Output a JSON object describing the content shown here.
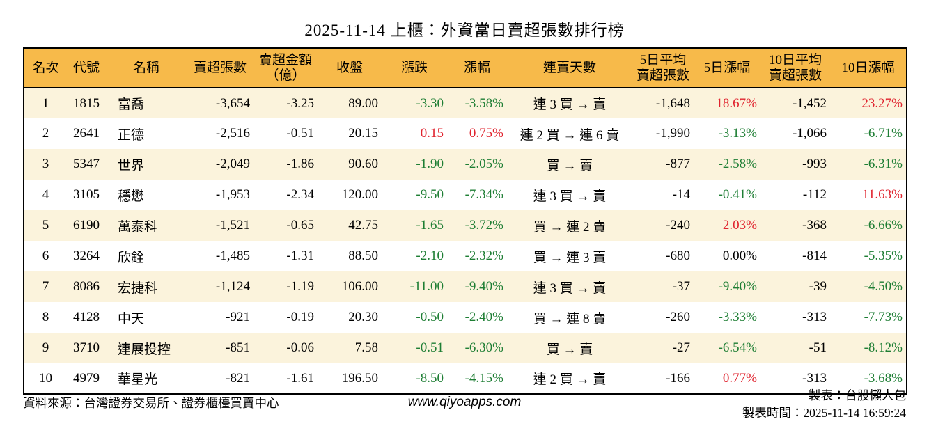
{
  "title": "2025-11-14 上櫃：外資當日賣超張數排行榜",
  "colors": {
    "header_bg": "#f7ba4a",
    "row_stripe_bg": "#fbf3dc",
    "row_plain_bg": "#ffffff",
    "up_red": "#e0232e",
    "down_green": "#1e7e34",
    "text": "#000000",
    "border": "#000000"
  },
  "table": {
    "columns": [
      {
        "key": "rank",
        "label": "名次"
      },
      {
        "key": "code",
        "label": "代號"
      },
      {
        "key": "name",
        "label": "名稱"
      },
      {
        "key": "sell_volume",
        "label": "賣超張數"
      },
      {
        "key": "sell_amount",
        "label": "賣超金額\n（億）"
      },
      {
        "key": "close",
        "label": "收盤"
      },
      {
        "key": "change",
        "label": "漲跌"
      },
      {
        "key": "change_pct",
        "label": "漲幅"
      },
      {
        "key": "streak",
        "label": "連賣天數"
      },
      {
        "key": "avg5",
        "label": "5日平均\n賣超張數"
      },
      {
        "key": "pct5",
        "label": "5日漲幅"
      },
      {
        "key": "avg10",
        "label": "10日平均\n賣超張數"
      },
      {
        "key": "pct10",
        "label": "10日漲幅"
      }
    ],
    "rows": [
      {
        "cells": [
          {
            "t": "1"
          },
          {
            "t": "1815"
          },
          {
            "t": "富喬"
          },
          {
            "t": "-3,654"
          },
          {
            "t": "-3.25"
          },
          {
            "t": "89.00"
          },
          {
            "t": "-3.30",
            "c": "dn"
          },
          {
            "t": "-3.58%",
            "c": "dn"
          },
          {
            "t": "連 3 買 → 賣"
          },
          {
            "t": "-1,648"
          },
          {
            "t": "18.67%",
            "c": "up"
          },
          {
            "t": "-1,452"
          },
          {
            "t": "23.27%",
            "c": "up"
          }
        ]
      },
      {
        "cells": [
          {
            "t": "2"
          },
          {
            "t": "2641"
          },
          {
            "t": "正德"
          },
          {
            "t": "-2,516"
          },
          {
            "t": "-0.51"
          },
          {
            "t": "20.15"
          },
          {
            "t": "0.15",
            "c": "up"
          },
          {
            "t": "0.75%",
            "c": "up"
          },
          {
            "t": "連 2 買 → 連 6 賣"
          },
          {
            "t": "-1,990"
          },
          {
            "t": "-3.13%",
            "c": "dn"
          },
          {
            "t": "-1,066"
          },
          {
            "t": "-6.71%",
            "c": "dn"
          }
        ]
      },
      {
        "cells": [
          {
            "t": "3"
          },
          {
            "t": "5347"
          },
          {
            "t": "世界"
          },
          {
            "t": "-2,049"
          },
          {
            "t": "-1.86"
          },
          {
            "t": "90.60"
          },
          {
            "t": "-1.90",
            "c": "dn"
          },
          {
            "t": "-2.05%",
            "c": "dn"
          },
          {
            "t": "買 → 賣"
          },
          {
            "t": "-877"
          },
          {
            "t": "-2.58%",
            "c": "dn"
          },
          {
            "t": "-993"
          },
          {
            "t": "-6.31%",
            "c": "dn"
          }
        ]
      },
      {
        "cells": [
          {
            "t": "4"
          },
          {
            "t": "3105"
          },
          {
            "t": "穩懋"
          },
          {
            "t": "-1,953"
          },
          {
            "t": "-2.34"
          },
          {
            "t": "120.00"
          },
          {
            "t": "-9.50",
            "c": "dn"
          },
          {
            "t": "-7.34%",
            "c": "dn"
          },
          {
            "t": "連 3 買 → 賣"
          },
          {
            "t": "-14"
          },
          {
            "t": "-0.41%",
            "c": "dn"
          },
          {
            "t": "-112"
          },
          {
            "t": "11.63%",
            "c": "up"
          }
        ]
      },
      {
        "cells": [
          {
            "t": "5"
          },
          {
            "t": "6190"
          },
          {
            "t": "萬泰科"
          },
          {
            "t": "-1,521"
          },
          {
            "t": "-0.65"
          },
          {
            "t": "42.75"
          },
          {
            "t": "-1.65",
            "c": "dn"
          },
          {
            "t": "-3.72%",
            "c": "dn"
          },
          {
            "t": "買 → 連 2 賣"
          },
          {
            "t": "-240"
          },
          {
            "t": "2.03%",
            "c": "up"
          },
          {
            "t": "-368"
          },
          {
            "t": "-6.66%",
            "c": "dn"
          }
        ]
      },
      {
        "cells": [
          {
            "t": "6"
          },
          {
            "t": "3264"
          },
          {
            "t": "欣銓"
          },
          {
            "t": "-1,485"
          },
          {
            "t": "-1.31"
          },
          {
            "t": "88.50"
          },
          {
            "t": "-2.10",
            "c": "dn"
          },
          {
            "t": "-2.32%",
            "c": "dn"
          },
          {
            "t": "買 → 連 3 賣"
          },
          {
            "t": "-680"
          },
          {
            "t": "0.00%"
          },
          {
            "t": "-814"
          },
          {
            "t": "-5.35%",
            "c": "dn"
          }
        ]
      },
      {
        "cells": [
          {
            "t": "7"
          },
          {
            "t": "8086"
          },
          {
            "t": "宏捷科"
          },
          {
            "t": "-1,124"
          },
          {
            "t": "-1.19"
          },
          {
            "t": "106.00"
          },
          {
            "t": "-11.00",
            "c": "dn"
          },
          {
            "t": "-9.40%",
            "c": "dn"
          },
          {
            "t": "連 3 買 → 賣"
          },
          {
            "t": "-37"
          },
          {
            "t": "-9.40%",
            "c": "dn"
          },
          {
            "t": "-39"
          },
          {
            "t": "-4.50%",
            "c": "dn"
          }
        ]
      },
      {
        "cells": [
          {
            "t": "8"
          },
          {
            "t": "4128"
          },
          {
            "t": "中天"
          },
          {
            "t": "-921"
          },
          {
            "t": "-0.19"
          },
          {
            "t": "20.30"
          },
          {
            "t": "-0.50",
            "c": "dn"
          },
          {
            "t": "-2.40%",
            "c": "dn"
          },
          {
            "t": "買 → 連 8 賣"
          },
          {
            "t": "-260"
          },
          {
            "t": "-3.33%",
            "c": "dn"
          },
          {
            "t": "-313"
          },
          {
            "t": "-7.73%",
            "c": "dn"
          }
        ]
      },
      {
        "cells": [
          {
            "t": "9"
          },
          {
            "t": "3710"
          },
          {
            "t": "連展投控"
          },
          {
            "t": "-851"
          },
          {
            "t": "-0.06"
          },
          {
            "t": "7.58"
          },
          {
            "t": "-0.51",
            "c": "dn"
          },
          {
            "t": "-6.30%",
            "c": "dn"
          },
          {
            "t": "買 → 賣"
          },
          {
            "t": "-27"
          },
          {
            "t": "-6.54%",
            "c": "dn"
          },
          {
            "t": "-51"
          },
          {
            "t": "-8.12%",
            "c": "dn"
          }
        ]
      },
      {
        "cells": [
          {
            "t": "10"
          },
          {
            "t": "4979"
          },
          {
            "t": "華星光"
          },
          {
            "t": "-821"
          },
          {
            "t": "-1.61"
          },
          {
            "t": "196.50"
          },
          {
            "t": "-8.50",
            "c": "dn"
          },
          {
            "t": "-4.15%",
            "c": "dn"
          },
          {
            "t": "連 2 買 → 賣"
          },
          {
            "t": "-166"
          },
          {
            "t": "0.77%",
            "c": "up"
          },
          {
            "t": "-313"
          },
          {
            "t": "-3.68%",
            "c": "dn"
          }
        ]
      }
    ]
  },
  "footer": {
    "source": "資料來源：台灣證券交易所、證券櫃檯買賣中心",
    "website": "www.qiyoapps.com",
    "maker": "製表：台股懶人包",
    "made_time": "製表時間：2025-11-14 16:59:24"
  }
}
